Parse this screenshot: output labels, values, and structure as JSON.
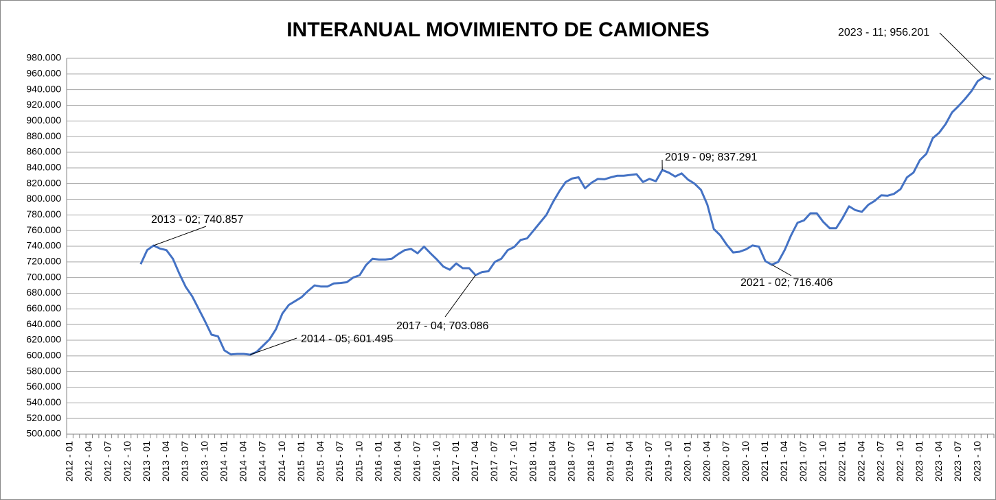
{
  "chart_data": {
    "type": "line",
    "title": "INTERANUAL MOVIMIENTO DE CAMIONES",
    "categories": [
      "2012 - 01",
      null,
      null,
      "2012 - 04",
      null,
      null,
      "2012 - 07",
      null,
      null,
      "2012 - 10",
      null,
      null,
      "2013 - 01",
      null,
      null,
      "2013 - 04",
      null,
      null,
      "2013 - 07",
      null,
      null,
      "2013 - 10",
      null,
      null,
      "2014 - 01",
      null,
      null,
      "2014 - 04",
      null,
      null,
      "2014 - 07",
      null,
      null,
      "2014 - 10",
      null,
      null,
      "2015 - 01",
      null,
      null,
      "2015 - 04",
      null,
      null,
      "2015 - 07",
      null,
      null,
      "2015 - 10",
      null,
      null,
      "2016 - 01",
      null,
      null,
      "2016 - 04",
      null,
      null,
      "2016 - 07",
      null,
      null,
      "2016 - 10",
      null,
      null,
      "2017 - 01",
      null,
      null,
      "2017 - 04",
      null,
      null,
      "2017 - 07",
      null,
      null,
      "2017 - 10",
      null,
      null,
      "2018 - 01",
      null,
      null,
      "2018 - 04",
      null,
      null,
      "2018 - 07",
      null,
      null,
      "2018 - 10",
      null,
      null,
      "2019 - 01",
      null,
      null,
      "2019 - 04",
      null,
      null,
      "2019 - 07",
      null,
      null,
      "2019 - 10",
      null,
      null,
      "2020 - 01",
      null,
      null,
      "2020 - 04",
      null,
      null,
      "2020 - 07",
      null,
      null,
      "2020 - 10",
      null,
      null,
      "2021 - 01",
      null,
      null,
      "2021 - 04",
      null,
      null,
      "2021 - 07",
      null,
      null,
      "2021 - 10",
      null,
      null,
      "2022 - 01",
      null,
      null,
      "2022 - 04",
      null,
      null,
      "2022 - 07",
      null,
      null,
      "2022 - 10",
      null,
      null,
      "2023 - 01",
      null,
      null,
      "2023 - 04",
      null,
      null,
      "2023 - 07",
      null,
      null,
      "2023 - 10",
      null,
      null
    ],
    "values": [
      null,
      null,
      null,
      null,
      null,
      null,
      null,
      null,
      null,
      null,
      null,
      717000,
      735000,
      740857,
      737000,
      735000,
      724000,
      705000,
      688000,
      676000,
      660000,
      644000,
      627000,
      625000,
      607000,
      601800,
      602500,
      602500,
      601495,
      605000,
      613000,
      621000,
      634000,
      654000,
      665000,
      670000,
      675000,
      683000,
      690000,
      688500,
      688500,
      692500,
      693000,
      694000,
      700000,
      703000,
      716000,
      724000,
      723000,
      723000,
      724000,
      730000,
      735000,
      736500,
      731000,
      739500,
      731000,
      723000,
      714000,
      710000,
      718000,
      712000,
      712000,
      703086,
      707000,
      708000,
      720000,
      724000,
      735000,
      739000,
      748000,
      750000,
      760000,
      770000,
      780000,
      796000,
      810000,
      822000,
      826500,
      828000,
      814000,
      821000,
      826000,
      825500,
      828000,
      830000,
      830000,
      831000,
      832000,
      822000,
      826000,
      823000,
      837291,
      834000,
      829000,
      833000,
      825000,
      820000,
      812000,
      793000,
      762000,
      754000,
      742000,
      732000,
      733000,
      736000,
      741000,
      739500,
      721000,
      716406,
      720000,
      735000,
      754000,
      770000,
      773000,
      782000,
      782000,
      771000,
      763000,
      763000,
      776000,
      791000,
      786000,
      784000,
      793000,
      798000,
      805000,
      804500,
      807000,
      813000,
      828000,
      834000,
      850000,
      858000,
      878000,
      885000,
      896000,
      911000,
      919000,
      928000,
      938000,
      951000,
      956201,
      953000
    ],
    "color": "#4472c4",
    "ylim": [
      500000,
      980000
    ],
    "yticks": [
      {
        "value": 500000,
        "label": "500.000"
      },
      {
        "value": 520000,
        "label": "520.000"
      },
      {
        "value": 540000,
        "label": "540.000"
      },
      {
        "value": 560000,
        "label": "560.000"
      },
      {
        "value": 580000,
        "label": "580.000"
      },
      {
        "value": 600000,
        "label": "600.000"
      },
      {
        "value": 620000,
        "label": "620.000"
      },
      {
        "value": 640000,
        "label": "640.000"
      },
      {
        "value": 660000,
        "label": "660.000"
      },
      {
        "value": 680000,
        "label": "680.000"
      },
      {
        "value": 700000,
        "label": "700.000"
      },
      {
        "value": 720000,
        "label": "720.000"
      },
      {
        "value": 740000,
        "label": "740.000"
      },
      {
        "value": 760000,
        "label": "760.000"
      },
      {
        "value": 780000,
        "label": "780.000"
      },
      {
        "value": 800000,
        "label": "800.000"
      },
      {
        "value": 820000,
        "label": "820.000"
      },
      {
        "value": 840000,
        "label": "840.000"
      },
      {
        "value": 860000,
        "label": "860.000"
      },
      {
        "value": 880000,
        "label": "880.000"
      },
      {
        "value": 900000,
        "label": "900.000"
      },
      {
        "value": 920000,
        "label": "920.000"
      },
      {
        "value": 940000,
        "label": "940.000"
      },
      {
        "value": 960000,
        "label": "960.000"
      },
      {
        "value": 980000,
        "label": "980.000"
      }
    ],
    "grid": true,
    "annotations": [
      "2013 - 02; 740.857",
      "2014 - 05; 601.495",
      "2017 - 04; 703.086",
      "2019 - 09; 837.291",
      "2021 - 02; 716.406",
      "2023 - 11; 956.201"
    ]
  }
}
